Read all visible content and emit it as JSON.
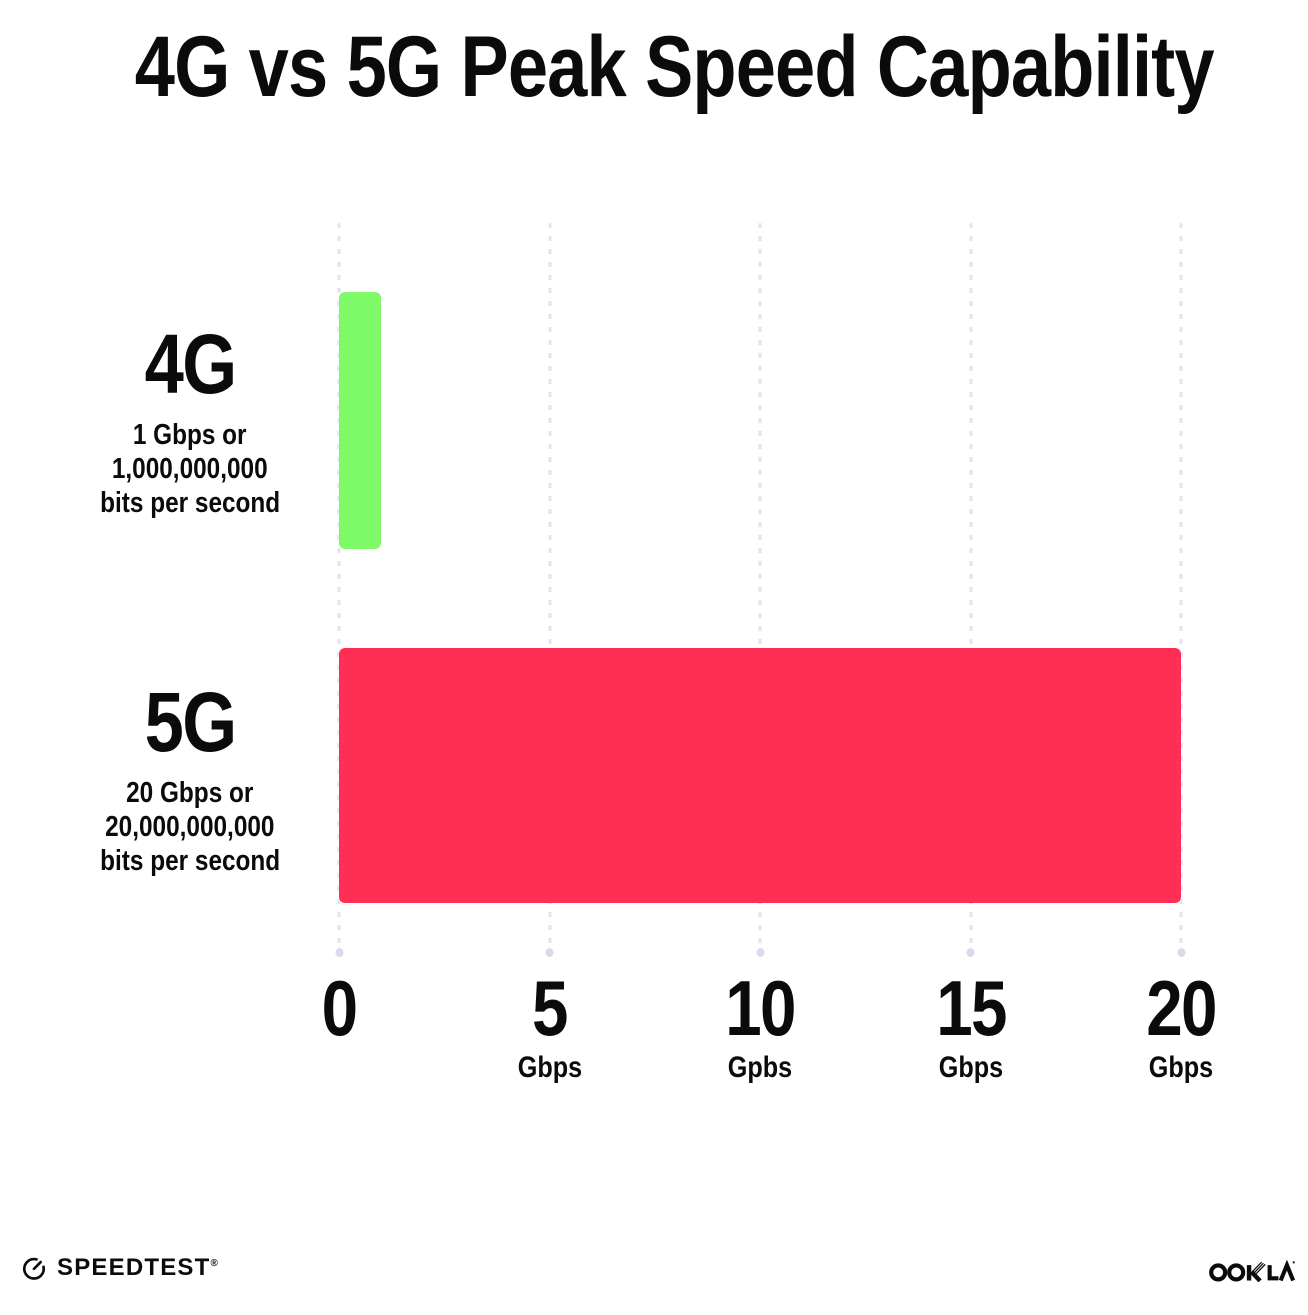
{
  "title": "4G vs 5G Peak Speed Capability",
  "chart_data": {
    "type": "bar",
    "orientation": "horizontal",
    "title": "4G vs 5G Peak Speed Capability",
    "categories": [
      "4G",
      "5G"
    ],
    "values": [
      1,
      20
    ],
    "value_unit": "Gbps",
    "bar_colors": [
      "#7EFA68",
      "#FF2E55"
    ],
    "xlabel": "",
    "ylabel": "",
    "xlim": [
      0,
      20
    ],
    "grid": "vertical-dotted",
    "legend": "none",
    "series_labels": [
      {
        "name": "4G",
        "sublines": [
          "1 Gbps or",
          "1,000,000,000",
          "bits per second"
        ]
      },
      {
        "name": "5G",
        "sublines": [
          "20 Gbps or",
          "20,000,000,000",
          "bits per second"
        ]
      }
    ],
    "x_ticks": [
      {
        "value": 0,
        "label": "0",
        "unit": ""
      },
      {
        "value": 5,
        "label": "5",
        "unit": "Gbps"
      },
      {
        "value": 10,
        "label": "10",
        "unit": "Gpbs"
      },
      {
        "value": 15,
        "label": "15",
        "unit": "Gbps"
      },
      {
        "value": 20,
        "label": "20",
        "unit": "Gbps"
      }
    ]
  },
  "footer": {
    "speedtest_label": "SPEEDTEST",
    "speedtest_mark": "®",
    "ookla_label": "OOKLA"
  },
  "colors": {
    "background": "#ffffff",
    "text": "#0b0b0c",
    "bar_4g": "#7EFA68",
    "bar_5g": "#FF2E55",
    "gridline_dot": "#e2e3f0",
    "gridline_end_dot": "#d9dbea"
  }
}
